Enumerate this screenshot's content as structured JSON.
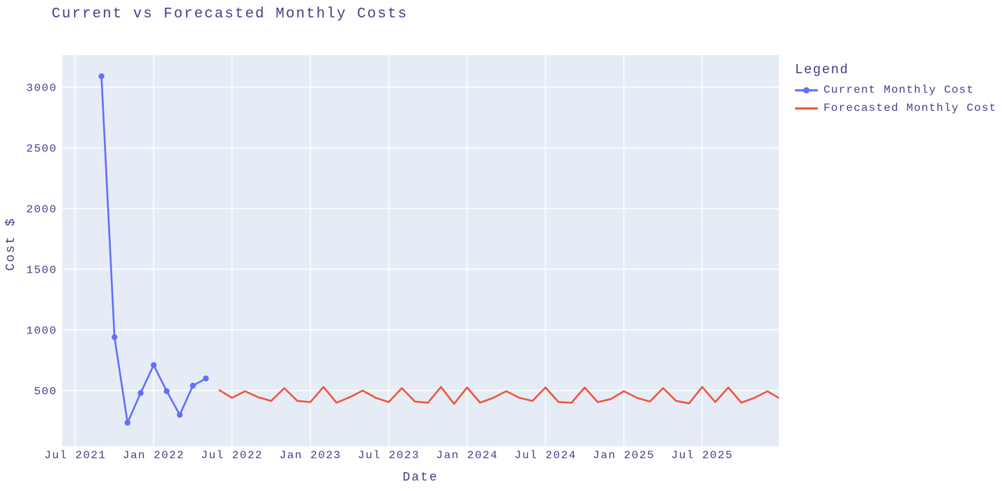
{
  "chart_data": {
    "type": "line",
    "title": "Current vs Forecasted Monthly Costs",
    "xlabel": "Date",
    "ylabel": "Cost $",
    "legend_title": "Legend",
    "legend_position": "right-top",
    "grid": true,
    "plot_bgcolor": "#E5ECF6",
    "gridline_color": "#FFFFFF",
    "font_color": "#483D8B",
    "x_tick_labels": [
      "Jul 2021",
      "Jan 2022",
      "Jul 2022",
      "Jan 2023",
      "Jul 2023",
      "Jan 2024",
      "Jul 2024",
      "Jan 2025",
      "Jul 2025"
    ],
    "x_tick_month_indices": [
      0,
      6,
      12,
      18,
      24,
      30,
      36,
      42,
      48
    ],
    "y_ticks": [
      500,
      1000,
      1500,
      2000,
      2500,
      3000
    ],
    "y_tick_labels": [
      "500",
      "1000",
      "1500",
      "2000",
      "2500",
      "3000"
    ],
    "y_range": [
      40,
      3265
    ],
    "x_range_months": [
      -1.0,
      53.87
    ],
    "series": [
      {
        "name": "Current Monthly Cost",
        "color": "#636EFA",
        "mode": "lines+markers",
        "start_index": 2,
        "x": [
          "Sep 2021",
          "Oct 2021",
          "Nov 2021",
          "Dec 2021",
          "Jan 2022",
          "Feb 2022",
          "Mar 2022",
          "Apr 2022",
          "May 2022"
        ],
        "values": [
          3090,
          940,
          235,
          480,
          710,
          495,
          300,
          540,
          600
        ]
      },
      {
        "name": "Forecasted Monthly Cost",
        "color": "#EF553B",
        "mode": "lines",
        "start_index": 11,
        "x": [
          "Jun 2022",
          "Jul 2022",
          "Aug 2022",
          "Sep 2022",
          "Oct 2022",
          "Nov 2022",
          "Dec 2022",
          "Jan 2023",
          "Feb 2023",
          "Mar 2023",
          "Apr 2023",
          "May 2023",
          "Jun 2023",
          "Jul 2023",
          "Aug 2023",
          "Sep 2023",
          "Oct 2023",
          "Nov 2023",
          "Dec 2023",
          "Jan 2024",
          "Feb 2024",
          "Mar 2024",
          "Apr 2024",
          "May 2024",
          "Jun 2024",
          "Jul 2024",
          "Aug 2024",
          "Sep 2024",
          "Oct 2024",
          "Nov 2024",
          "Dec 2024",
          "Jan 2025",
          "Feb 2025",
          "Mar 2025",
          "Apr 2025",
          "May 2025",
          "Jun 2025",
          "Jul 2025",
          "Aug 2025",
          "Sep 2025",
          "Oct 2025",
          "Nov 2025",
          "Dec 2025",
          "Jan 2026"
        ],
        "values": [
          505,
          440,
          495,
          445,
          415,
          520,
          415,
          405,
          530,
          400,
          445,
          500,
          440,
          405,
          520,
          410,
          400,
          530,
          390,
          525,
          400,
          440,
          495,
          440,
          415,
          525,
          405,
          400,
          525,
          405,
          430,
          495,
          440,
          410,
          520,
          415,
          395,
          530,
          405,
          525,
          400,
          440,
          495,
          430
        ]
      }
    ]
  }
}
